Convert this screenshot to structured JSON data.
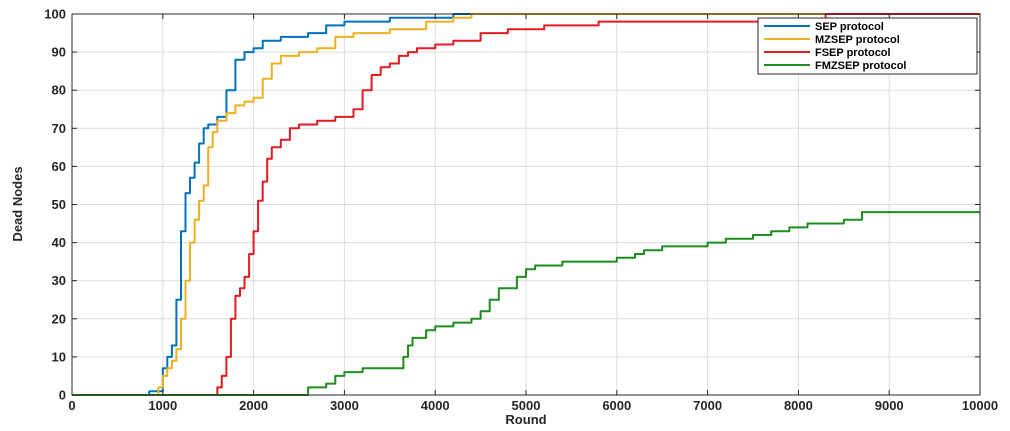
{
  "chart_data": {
    "type": "line",
    "title": "",
    "xlabel": "Round",
    "ylabel": "Dead Nodes",
    "xlim": [
      0,
      10000
    ],
    "ylim": [
      0,
      100
    ],
    "xticks": [
      0,
      1000,
      2000,
      3000,
      4000,
      5000,
      6000,
      7000,
      8000,
      9000,
      10000
    ],
    "yticks": [
      0,
      10,
      20,
      30,
      40,
      50,
      60,
      70,
      80,
      90,
      100
    ],
    "grid": true,
    "legend_position": "top-right",
    "series": [
      {
        "name": "SEP protocol",
        "color": "#0072BD",
        "x": [
          0,
          850,
          900,
          1000,
          1050,
          1100,
          1150,
          1200,
          1250,
          1300,
          1350,
          1400,
          1450,
          1500,
          1600,
          1700,
          1800,
          1900,
          2000,
          2100,
          2300,
          2600,
          2800,
          3000,
          3500,
          4000,
          4200,
          4300,
          10000
        ],
        "y": [
          0,
          1,
          1,
          7,
          10,
          13,
          25,
          43,
          53,
          57,
          61,
          66,
          70,
          71,
          73,
          80,
          88,
          90,
          91,
          93,
          94,
          95,
          97,
          98,
          99,
          99,
          100,
          100,
          100
        ]
      },
      {
        "name": "MZSEP protocol",
        "color": "#EDB120",
        "x": [
          0,
          900,
          950,
          1000,
          1050,
          1100,
          1150,
          1200,
          1250,
          1300,
          1350,
          1400,
          1450,
          1500,
          1550,
          1600,
          1700,
          1800,
          1900,
          2000,
          2100,
          2200,
          2300,
          2500,
          2700,
          2900,
          3100,
          3500,
          3900,
          4200,
          4400,
          10000
        ],
        "y": [
          0,
          0,
          2,
          5,
          7,
          9,
          12,
          20,
          30,
          40,
          46,
          51,
          55,
          65,
          69,
          72,
          74,
          76,
          77,
          78,
          83,
          87,
          89,
          90,
          91,
          94,
          95,
          96,
          98,
          99,
          100,
          100
        ]
      },
      {
        "name": "FSEP protocol",
        "color": "#E21B22",
        "x": [
          0,
          1550,
          1600,
          1650,
          1700,
          1750,
          1800,
          1850,
          1900,
          1950,
          2000,
          2050,
          2100,
          2150,
          2200,
          2300,
          2400,
          2500,
          2700,
          2900,
          3100,
          3200,
          3300,
          3400,
          3500,
          3600,
          3700,
          3800,
          4000,
          4200,
          4500,
          4800,
          5200,
          5800,
          8300,
          10000
        ],
        "y": [
          0,
          0,
          2,
          5,
          10,
          20,
          26,
          28,
          31,
          37,
          43,
          51,
          56,
          62,
          65,
          67,
          70,
          71,
          72,
          73,
          75,
          80,
          84,
          86,
          87,
          89,
          90,
          91,
          92,
          93,
          95,
          96,
          97,
          98,
          100,
          100
        ]
      },
      {
        "name": "FMZSEP protocol",
        "color": "#1E8C1E",
        "x": [
          0,
          2500,
          2600,
          2800,
          2900,
          3000,
          3200,
          3400,
          3650,
          3700,
          3750,
          3900,
          4000,
          4200,
          4400,
          4500,
          4600,
          4700,
          4800,
          4900,
          5000,
          5100,
          5200,
          5400,
          5800,
          6000,
          6200,
          6300,
          6500,
          7000,
          7200,
          7500,
          7700,
          7900,
          8100,
          8300,
          8500,
          8700,
          10000
        ],
        "y": [
          0,
          0,
          2,
          3,
          5,
          6,
          7,
          7,
          10,
          13,
          15,
          17,
          18,
          19,
          20,
          22,
          25,
          28,
          28,
          31,
          33,
          34,
          34,
          35,
          35,
          36,
          37,
          38,
          39,
          40,
          41,
          42,
          43,
          44,
          45,
          45,
          46,
          48,
          48
        ]
      }
    ]
  }
}
